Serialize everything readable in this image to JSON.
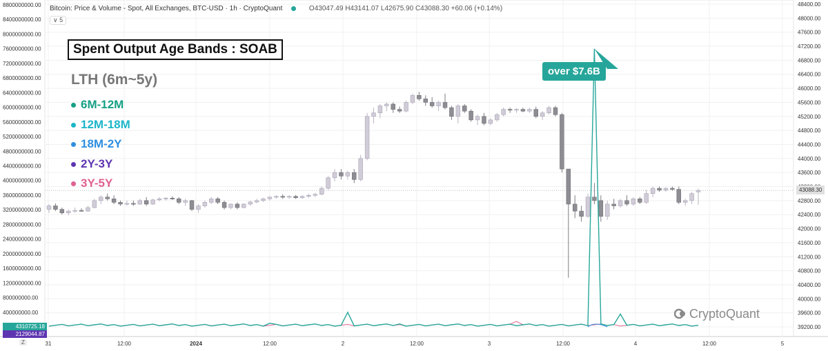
{
  "header": {
    "title": "Bitcoin: Price & Volume - Spot, All Exchanges, BTC-USD · 1h · CryptoQuant",
    "ohlc": "O43047.49 H43141.07 L42675.90 C43088.30 +60.06 (+0.14%)",
    "collapse_label": "∨ 5"
  },
  "overlay": {
    "title": "Spent Output Age Bands : SOAB",
    "subtitle": "LTH (6m~5y)",
    "callout": "over $7.6B",
    "brand": "CryptoQuant",
    "legend": [
      {
        "label": "6M-12M",
        "color": "#16a085"
      },
      {
        "label": "12M-18M",
        "color": "#1bb6c9"
      },
      {
        "label": "18M-2Y",
        "color": "#2f8fe0"
      },
      {
        "label": "2Y-3Y",
        "color": "#5e35b1"
      },
      {
        "label": "3Y-5Y",
        "color": "#e06090"
      }
    ]
  },
  "badges": {
    "value_a": "4310725.18",
    "value_b": "2129044.87"
  },
  "price_tag": "43088.30",
  "z_label": "Z",
  "colors": {
    "bull": "#d1ccd8",
    "bear": "#8d8d93",
    "line": "#26a69a",
    "grid": "#f0f0f0"
  },
  "chart_data": {
    "type": "candlestick",
    "title": "Bitcoin: Price & Volume - Spot, All Exchanges, BTC-USD",
    "price_axis": {
      "side": "right",
      "range": [
        39000,
        48600
      ],
      "ticks": [
        "48400.00",
        "48000.00",
        "47600.00",
        "47200.00",
        "46800.00",
        "46400.00",
        "46000.00",
        "45600.00",
        "45200.00",
        "44800.00",
        "44400.00",
        "44000.00",
        "43600.00",
        "43200.00",
        "42800.00",
        "42400.00",
        "42000.00",
        "41600.00",
        "41200.00",
        "40800.00",
        "40400.00",
        "40000.00",
        "39600.00",
        "39200.00"
      ]
    },
    "volume_axis": {
      "side": "left",
      "range": [
        0,
        8800000000
      ],
      "ticks": [
        "8800000000.00",
        "8400000000.00",
        "8000000000.00",
        "7600000000.00",
        "7200000000.00",
        "6800000000.00",
        "6400000000.00",
        "6000000000.00",
        "5600000000.00",
        "5200000000.00",
        "4800000000.00",
        "4400000000.00",
        "4000000000.00",
        "3600000000.00",
        "3200000000.00",
        "2800000000.00",
        "2400000000.00",
        "2000000000.00",
        "1600000000.00",
        "1200000000.00",
        "800000000.00",
        "400000000.00"
      ]
    },
    "x_ticks": [
      "31",
      "12:00",
      "2024",
      "12:00",
      "2",
      "12:00",
      "3",
      "12:00",
      "4",
      "12:00",
      "5"
    ],
    "candles": [
      {
        "o": 42550,
        "h": 42700,
        "l": 42450,
        "c": 42650
      },
      {
        "o": 42650,
        "h": 42720,
        "l": 42500,
        "c": 42550
      },
      {
        "o": 42550,
        "h": 42600,
        "l": 42400,
        "c": 42450
      },
      {
        "o": 42450,
        "h": 42550,
        "l": 42380,
        "c": 42500
      },
      {
        "o": 42500,
        "h": 42600,
        "l": 42450,
        "c": 42520
      },
      {
        "o": 42520,
        "h": 42580,
        "l": 42480,
        "c": 42500
      },
      {
        "o": 42500,
        "h": 42650,
        "l": 42480,
        "c": 42600
      },
      {
        "o": 42600,
        "h": 42850,
        "l": 42580,
        "c": 42800
      },
      {
        "o": 42800,
        "h": 42950,
        "l": 42700,
        "c": 42900
      },
      {
        "o": 42900,
        "h": 43000,
        "l": 42800,
        "c": 42850
      },
      {
        "o": 42850,
        "h": 42950,
        "l": 42700,
        "c": 42750
      },
      {
        "o": 42750,
        "h": 42800,
        "l": 42650,
        "c": 42700
      },
      {
        "o": 42700,
        "h": 42800,
        "l": 42650,
        "c": 42720
      },
      {
        "o": 42720,
        "h": 42800,
        "l": 42650,
        "c": 42700
      },
      {
        "o": 42700,
        "h": 42850,
        "l": 42680,
        "c": 42800
      },
      {
        "o": 42800,
        "h": 42900,
        "l": 42650,
        "c": 42700
      },
      {
        "o": 42700,
        "h": 42850,
        "l": 42680,
        "c": 42820
      },
      {
        "o": 42820,
        "h": 42900,
        "l": 42780,
        "c": 42850
      },
      {
        "o": 42850,
        "h": 42900,
        "l": 42800,
        "c": 42870
      },
      {
        "o": 42870,
        "h": 42920,
        "l": 42820,
        "c": 42850
      },
      {
        "o": 42850,
        "h": 42900,
        "l": 42700,
        "c": 42750
      },
      {
        "o": 42750,
        "h": 42850,
        "l": 42650,
        "c": 42800
      },
      {
        "o": 42800,
        "h": 42820,
        "l": 42500,
        "c": 42550
      },
      {
        "o": 42550,
        "h": 42700,
        "l": 42450,
        "c": 42650
      },
      {
        "o": 42650,
        "h": 42800,
        "l": 42600,
        "c": 42750
      },
      {
        "o": 42750,
        "h": 42900,
        "l": 42700,
        "c": 42850
      },
      {
        "o": 42850,
        "h": 42900,
        "l": 42700,
        "c": 42750
      },
      {
        "o": 42750,
        "h": 42800,
        "l": 42550,
        "c": 42600
      },
      {
        "o": 42600,
        "h": 42720,
        "l": 42550,
        "c": 42700
      },
      {
        "o": 42700,
        "h": 42750,
        "l": 42550,
        "c": 42600
      },
      {
        "o": 42600,
        "h": 42720,
        "l": 42580,
        "c": 42700
      },
      {
        "o": 42700,
        "h": 42800,
        "l": 42650,
        "c": 42760
      },
      {
        "o": 42760,
        "h": 42850,
        "l": 42720,
        "c": 42800
      },
      {
        "o": 42800,
        "h": 42880,
        "l": 42760,
        "c": 42850
      },
      {
        "o": 42850,
        "h": 42920,
        "l": 42800,
        "c": 42900
      },
      {
        "o": 42900,
        "h": 42950,
        "l": 42850,
        "c": 42920
      },
      {
        "o": 42920,
        "h": 42980,
        "l": 42850,
        "c": 42900
      },
      {
        "o": 42900,
        "h": 42950,
        "l": 42850,
        "c": 42920
      },
      {
        "o": 42920,
        "h": 42960,
        "l": 42850,
        "c": 42880
      },
      {
        "o": 42880,
        "h": 42950,
        "l": 42850,
        "c": 42920
      },
      {
        "o": 42920,
        "h": 43000,
        "l": 42880,
        "c": 42950
      },
      {
        "o": 42950,
        "h": 43020,
        "l": 42900,
        "c": 42980
      },
      {
        "o": 42980,
        "h": 43200,
        "l": 42950,
        "c": 43150
      },
      {
        "o": 43150,
        "h": 43500,
        "l": 43100,
        "c": 43450
      },
      {
        "o": 43450,
        "h": 43700,
        "l": 43350,
        "c": 43600
      },
      {
        "o": 43600,
        "h": 43700,
        "l": 43400,
        "c": 43500
      },
      {
        "o": 43500,
        "h": 43650,
        "l": 43400,
        "c": 43600
      },
      {
        "o": 43600,
        "h": 43700,
        "l": 43300,
        "c": 43400
      },
      {
        "o": 43400,
        "h": 44100,
        "l": 43350,
        "c": 44000
      },
      {
        "o": 44000,
        "h": 45300,
        "l": 43950,
        "c": 45200
      },
      {
        "o": 45200,
        "h": 45450,
        "l": 45000,
        "c": 45300
      },
      {
        "o": 45300,
        "h": 45550,
        "l": 45150,
        "c": 45500
      },
      {
        "o": 45500,
        "h": 45600,
        "l": 45350,
        "c": 45550
      },
      {
        "o": 45550,
        "h": 45600,
        "l": 45300,
        "c": 45400
      },
      {
        "o": 45400,
        "h": 45480,
        "l": 45300,
        "c": 45350
      },
      {
        "o": 45350,
        "h": 45650,
        "l": 45320,
        "c": 45600
      },
      {
        "o": 45600,
        "h": 45850,
        "l": 45550,
        "c": 45800
      },
      {
        "o": 45800,
        "h": 45900,
        "l": 45650,
        "c": 45700
      },
      {
        "o": 45700,
        "h": 45800,
        "l": 45500,
        "c": 45600
      },
      {
        "o": 45600,
        "h": 45750,
        "l": 45450,
        "c": 45500
      },
      {
        "o": 45500,
        "h": 45650,
        "l": 45350,
        "c": 45600
      },
      {
        "o": 45600,
        "h": 45850,
        "l": 45400,
        "c": 45450
      },
      {
        "o": 45450,
        "h": 45500,
        "l": 45100,
        "c": 45200
      },
      {
        "o": 45200,
        "h": 45550,
        "l": 45000,
        "c": 45500
      },
      {
        "o": 45500,
        "h": 45550,
        "l": 45300,
        "c": 45350
      },
      {
        "o": 45350,
        "h": 45400,
        "l": 45050,
        "c": 45100
      },
      {
        "o": 45100,
        "h": 45250,
        "l": 44950,
        "c": 45200
      },
      {
        "o": 45200,
        "h": 45300,
        "l": 44950,
        "c": 45000
      },
      {
        "o": 45000,
        "h": 45150,
        "l": 44950,
        "c": 45100
      },
      {
        "o": 45100,
        "h": 45300,
        "l": 45050,
        "c": 45250
      },
      {
        "o": 45250,
        "h": 45450,
        "l": 45200,
        "c": 45400
      },
      {
        "o": 45400,
        "h": 45450,
        "l": 45300,
        "c": 45380
      },
      {
        "o": 45380,
        "h": 45430,
        "l": 45300,
        "c": 45400
      },
      {
        "o": 45400,
        "h": 45450,
        "l": 45320,
        "c": 45350
      },
      {
        "o": 45350,
        "h": 45450,
        "l": 45300,
        "c": 45400
      },
      {
        "o": 45400,
        "h": 45480,
        "l": 45150,
        "c": 45200
      },
      {
        "o": 45200,
        "h": 45350,
        "l": 45100,
        "c": 45300
      },
      {
        "o": 45300,
        "h": 45500,
        "l": 45250,
        "c": 45450
      },
      {
        "o": 45450,
        "h": 45500,
        "l": 45200,
        "c": 45250
      },
      {
        "o": 45250,
        "h": 45300,
        "l": 43600,
        "c": 43700
      },
      {
        "o": 43700,
        "h": 43700,
        "l": 40600,
        "c": 42700
      },
      {
        "o": 42700,
        "h": 42950,
        "l": 42300,
        "c": 42500
      },
      {
        "o": 42500,
        "h": 42650,
        "l": 42200,
        "c": 42350
      },
      {
        "o": 42350,
        "h": 43000,
        "l": 42300,
        "c": 42900
      },
      {
        "o": 42900,
        "h": 43300,
        "l": 42700,
        "c": 42800
      },
      {
        "o": 42800,
        "h": 42950,
        "l": 42200,
        "c": 42350
      },
      {
        "o": 42350,
        "h": 42800,
        "l": 42250,
        "c": 42700
      },
      {
        "o": 42700,
        "h": 42850,
        "l": 42550,
        "c": 42650
      },
      {
        "o": 42650,
        "h": 42850,
        "l": 42600,
        "c": 42800
      },
      {
        "o": 42800,
        "h": 42950,
        "l": 42650,
        "c": 42700
      },
      {
        "o": 42700,
        "h": 42900,
        "l": 42650,
        "c": 42850
      },
      {
        "o": 42850,
        "h": 42900,
        "l": 42700,
        "c": 42750
      },
      {
        "o": 42750,
        "h": 43100,
        "l": 42700,
        "c": 43000
      },
      {
        "o": 43000,
        "h": 43200,
        "l": 42900,
        "c": 43150
      },
      {
        "o": 43150,
        "h": 43200,
        "l": 43050,
        "c": 43100
      },
      {
        "o": 43100,
        "h": 43180,
        "l": 43050,
        "c": 43150
      },
      {
        "o": 43150,
        "h": 43200,
        "l": 43080,
        "c": 43120
      },
      {
        "o": 43120,
        "h": 43200,
        "l": 42700,
        "c": 42750
      },
      {
        "o": 42750,
        "h": 42850,
        "l": 42650,
        "c": 42800
      },
      {
        "o": 42800,
        "h": 43050,
        "l": 42700,
        "c": 43000
      },
      {
        "o": 43047.49,
        "h": 43141.07,
        "l": 42675.9,
        "c": 43088.3
      }
    ],
    "sopr_line": {
      "spike_index": 84,
      "spike_value": 7600000000,
      "minor_peaks": [
        {
          "i": 46,
          "v": 400000000
        },
        {
          "i": 84,
          "v": 210000000
        },
        {
          "i": 88,
          "v": 350000000
        },
        {
          "i": 34,
          "v": 100000000
        },
        {
          "i": 54,
          "v": 80000000
        }
      ]
    },
    "secondary_line": {
      "name": "3Y-5Y",
      "peak_index": 72,
      "peak_value": 150000000
    }
  }
}
